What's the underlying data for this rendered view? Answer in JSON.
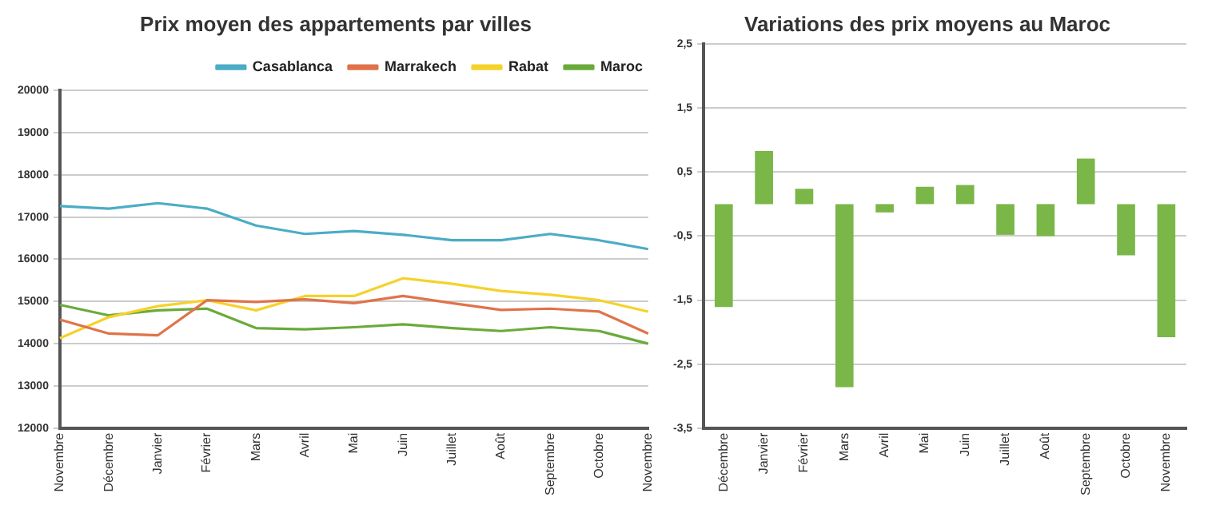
{
  "chart_data": [
    {
      "type": "line",
      "title": "Prix moyen des appartements par villes",
      "categories": [
        "Novembre",
        "Décembre",
        "Janvier",
        "Février",
        "Mars",
        "Avril",
        "Mai",
        "Juin",
        "Juillet",
        "Août",
        "Septembre",
        "Octobre",
        "Novembre"
      ],
      "series": [
        {
          "name": "Casablanca",
          "color": "#4bacc6",
          "values": [
            17260,
            17200,
            17330,
            17200,
            16800,
            16600,
            16670,
            16580,
            16450,
            16450,
            16600,
            16450,
            16240
          ]
        },
        {
          "name": "Marrakech",
          "color": "#e0734a",
          "values": [
            14570,
            14240,
            14200,
            15030,
            14990,
            15050,
            14960,
            15130,
            14960,
            14800,
            14830,
            14760,
            14240
          ]
        },
        {
          "name": "Rabat",
          "color": "#f5d22b",
          "values": [
            14130,
            14630,
            14890,
            15030,
            14790,
            15130,
            15130,
            15550,
            15420,
            15250,
            15160,
            15030,
            14760
          ]
        },
        {
          "name": "Maroc",
          "color": "#6aaa3a",
          "values": [
            14920,
            14670,
            14790,
            14830,
            14370,
            14340,
            14390,
            14460,
            14370,
            14300,
            14390,
            14300,
            14000
          ]
        }
      ],
      "ylim": [
        12000,
        20000
      ],
      "yticks": [
        12000,
        13000,
        14000,
        15000,
        16000,
        17000,
        18000,
        19000,
        20000
      ],
      "grid": "y",
      "legend": "top right",
      "marker": "none"
    },
    {
      "type": "bar",
      "title": "Variations des prix moyens au Maroc",
      "categories": [
        "Décembre",
        "Janvier",
        "Février",
        "Mars",
        "Avril",
        "Mai",
        "Juin",
        "Juillet",
        "Août",
        "Septembre",
        "Octobre",
        "Novembre"
      ],
      "values": [
        -1.61,
        0.83,
        0.24,
        -2.86,
        -0.13,
        0.27,
        0.3,
        -0.48,
        -0.5,
        0.71,
        -0.8,
        -2.08
      ],
      "color": "#7ab648",
      "ylim": [
        -3.5,
        2.5
      ],
      "yticks": [
        {
          "value": -3.5,
          "label": "-3,5"
        },
        {
          "value": -2.5,
          "label": "-2,5"
        },
        {
          "value": -1.5,
          "label": "-1,5"
        },
        {
          "value": -0.5,
          "label": "-0,5"
        },
        {
          "value": 0.5,
          "label": "0,5"
        },
        {
          "value": 1.5,
          "label": "1,5"
        },
        {
          "value": 2.5,
          "label": "2,5"
        }
      ],
      "grid": "y"
    }
  ]
}
